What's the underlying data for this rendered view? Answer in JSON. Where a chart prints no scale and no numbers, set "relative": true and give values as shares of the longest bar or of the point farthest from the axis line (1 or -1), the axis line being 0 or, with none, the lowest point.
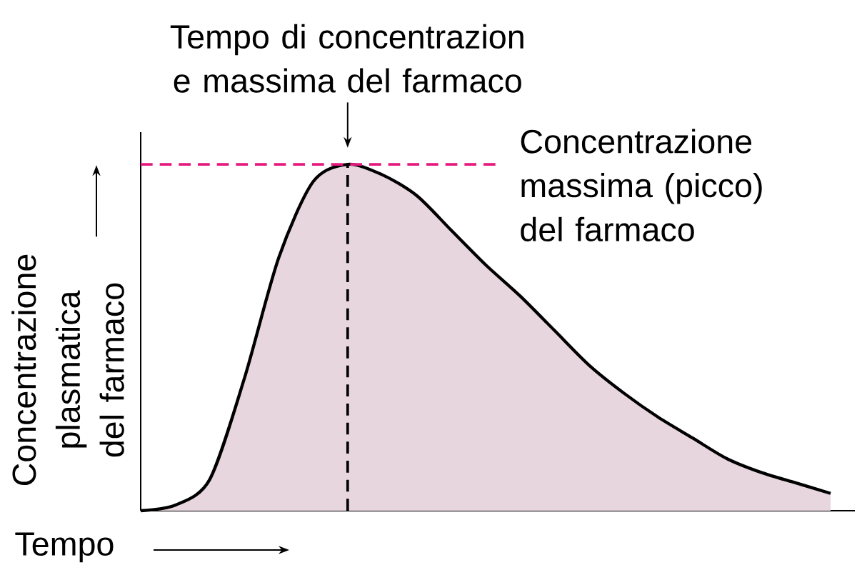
{
  "chart_data": {
    "type": "area",
    "relative": true,
    "xlabel": "Tempo",
    "ylabel": "Concentrazione plasmatica del farmaco",
    "categories": [
      null,
      null,
      null,
      null,
      null,
      null,
      null,
      null,
      null,
      null,
      null,
      null,
      null,
      null,
      null,
      null,
      null,
      null,
      null,
      null,
      null
    ],
    "series": [
      {
        "color": "#e8d6df",
        "values": [
          0,
          0.016,
          0.09,
          0.38,
          0.73,
          0.95,
          1,
          0.97,
          0.91,
          0.81,
          0.71,
          0.62,
          0.52,
          0.42,
          0.34,
          0.27,
          0.21,
          0.15,
          0.11,
          0.08,
          0.05
        ]
      }
    ],
    "ref_lines": [
      {
        "axis": "y",
        "value": 1,
        "label": "Concentrazione massima (picco) del farmaco",
        "color": "#e6197f",
        "line_style": "dashed"
      }
    ],
    "annotations": [
      "Tempo di concentrazion e massima del farmaco"
    ]
  }
}
